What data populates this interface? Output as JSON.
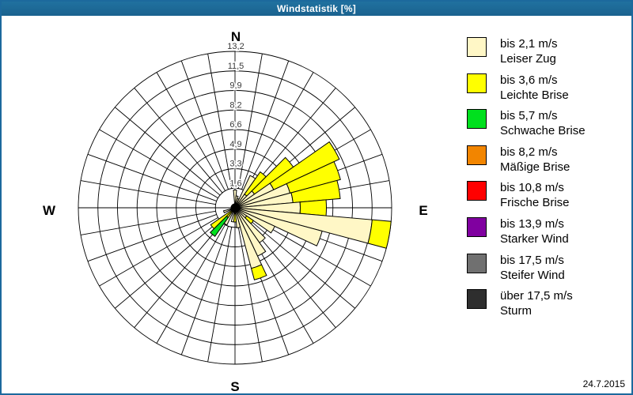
{
  "window": {
    "title": "Windstatistik [%]",
    "date": "24.7.2015",
    "titlebar_color": "#1c699d",
    "border_color": "#1c699d"
  },
  "legend": {
    "items": [
      {
        "speed": "bis 2,1 m/s",
        "name": "Leiser Zug",
        "color": "#FFF7C6",
        "dots": false
      },
      {
        "speed": "bis 3,6 m/s",
        "name": "Leichte Brise",
        "color": "#FFFF00",
        "dots": false
      },
      {
        "speed": "bis 5,7 m/s",
        "name": "Schwache Brise",
        "color": "#00E01E",
        "dots": false
      },
      {
        "speed": "bis 8,2 m/s",
        "name": "Mäßige Brise",
        "color": "#F28500",
        "dots": false
      },
      {
        "speed": "bis 10,8 m/s",
        "name": "Frische Brise",
        "color": "#FF0000",
        "dots": false
      },
      {
        "speed": "bis 13,9 m/s",
        "name": "Starker Wind",
        "color": "#8000A0",
        "dots": true
      },
      {
        "speed": "bis 17,5 m/s",
        "name": "Steifer Wind",
        "color": "#707070",
        "dots": true
      },
      {
        "speed": "über 17,5 m/s",
        "name": "Sturm",
        "color": "#2E2E2E",
        "dots": true
      }
    ]
  },
  "chart_data": {
    "type": "wind_rose",
    "title": "Windstatistik [%]",
    "units": "%",
    "sector_count": 36,
    "sector_width_deg": 10,
    "max_value": 13.2,
    "ring_values": [
      1.65,
      3.3,
      4.95,
      6.6,
      8.25,
      9.9,
      11.55,
      13.2
    ],
    "ring_labels": [
      "1,6",
      "3,3",
      "4,9",
      "6,6",
      "8,2",
      "9,9",
      "11,5",
      "13,2"
    ],
    "compass": {
      "n": "N",
      "e": "E",
      "s": "S",
      "w": "W"
    },
    "grid_color": "#000000",
    "tick_label_color": "#3a3a3a",
    "petals": [
      {
        "dir": 0,
        "cum": [
          1.5
        ]
      },
      {
        "dir": 10,
        "cum": [
          1.0
        ]
      },
      {
        "dir": 20,
        "cum": [
          0.8
        ]
      },
      {
        "dir": 30,
        "cum": [
          3.0
        ]
      },
      {
        "dir": 40,
        "cum": [
          1.4,
          3.7
        ]
      },
      {
        "dir": 50,
        "cum": [
          2.0,
          6.0
        ]
      },
      {
        "dir": 60,
        "cum": [
          3.6,
          9.7
        ]
      },
      {
        "dir": 70,
        "cum": [
          4.8,
          9.2
        ]
      },
      {
        "dir": 80,
        "cum": [
          4.9,
          8.9
        ]
      },
      {
        "dir": 90,
        "cum": [
          5.5,
          7.7
        ]
      },
      {
        "dir": 100,
        "cum": [
          11.6,
          13.2
        ]
      },
      {
        "dir": 110,
        "cum": [
          7.6
        ]
      },
      {
        "dir": 120,
        "cum": [
          3.7
        ]
      },
      {
        "dir": 130,
        "cum": [
          1.2,
          1.9
        ]
      },
      {
        "dir": 140,
        "cum": [
          3.6
        ]
      },
      {
        "dir": 150,
        "cum": [
          4.5
        ]
      },
      {
        "dir": 160,
        "cum": [
          5.3,
          6.3
        ]
      },
      {
        "dir": 170,
        "cum": [
          1.7
        ]
      },
      {
        "dir": 180,
        "cum": [
          0.5,
          1.2
        ]
      },
      {
        "dir": 190,
        "cum": [
          1.2
        ]
      },
      {
        "dir": 210,
        "cum": [
          1.6
        ]
      },
      {
        "dir": 220,
        "cum": [
          0.3,
          1.0,
          2.95
        ]
      },
      {
        "dir": 230,
        "cum": [
          0.4,
          2.5
        ]
      },
      {
        "dir": 250,
        "cum": [
          1.0
        ]
      }
    ]
  }
}
